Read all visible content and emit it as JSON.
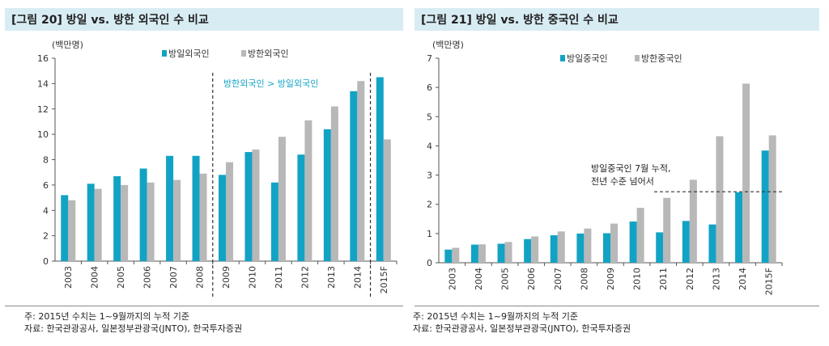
{
  "colors": {
    "teal": "#12a3c4",
    "gray": "#b8b8b8",
    "title_bg": "#d8ecf3",
    "axis": "#555555",
    "dash": "#333333"
  },
  "chart_data": [
    {
      "type": "bar",
      "title": "[그림 20] 방일 vs. 방한 외국인 수 비교",
      "unit_label": "(백만명)",
      "categories": [
        "2003",
        "2004",
        "2005",
        "2006",
        "2007",
        "2008",
        "2009",
        "2010",
        "2011",
        "2012",
        "2013",
        "2014",
        "2015F"
      ],
      "series": [
        {
          "name": "방일외국인",
          "color": "#12a3c4",
          "values": [
            5.2,
            6.1,
            6.7,
            7.3,
            8.3,
            8.3,
            6.8,
            8.6,
            6.2,
            8.4,
            10.4,
            13.4,
            14.5
          ]
        },
        {
          "name": "방한외국인",
          "color": "#b8b8b8",
          "values": [
            4.8,
            5.7,
            6.0,
            6.2,
            6.4,
            6.9,
            7.8,
            8.8,
            9.8,
            11.1,
            12.2,
            14.2,
            9.6
          ]
        }
      ],
      "ylim": [
        0,
        16
      ],
      "yticks": [
        0,
        2,
        4,
        6,
        8,
        10,
        12,
        14,
        16
      ],
      "xlabel": "",
      "ylabel": "",
      "annotation": "방한외국인 > 방일외국인",
      "divider_after": [
        "2008",
        "2014"
      ],
      "legend": "top"
    },
    {
      "type": "bar",
      "title": "[그림 21] 방일 vs. 방한 중국인 수 비교",
      "unit_label": "(백만명)",
      "categories": [
        "2003",
        "2004",
        "2005",
        "2006",
        "2007",
        "2008",
        "2009",
        "2010",
        "2011",
        "2012",
        "2013",
        "2014",
        "2015F"
      ],
      "series": [
        {
          "name": "방일중국인",
          "color": "#12a3c4",
          "values": [
            0.45,
            0.62,
            0.65,
            0.81,
            0.94,
            1.0,
            1.01,
            1.41,
            1.04,
            1.43,
            1.31,
            2.41,
            3.84
          ]
        },
        {
          "name": "방한중국인",
          "color": "#b8b8b8",
          "values": [
            0.51,
            0.63,
            0.71,
            0.9,
            1.07,
            1.17,
            1.34,
            1.88,
            2.22,
            2.84,
            4.33,
            6.13,
            4.36
          ]
        }
      ],
      "ylim": [
        0,
        7
      ],
      "yticks": [
        0,
        1,
        2,
        3,
        4,
        5,
        6,
        7
      ],
      "xlabel": "",
      "ylabel": "",
      "annotation": [
        "방일중국인 7월 누적,",
        "전년 수준 넘어서"
      ],
      "reference_value": 2.43,
      "legend": "top"
    }
  ],
  "notes": {
    "left": [
      "주: 2015년 수치는 1~9월까지의 누적 기준",
      "자료: 한국관광공사, 일본정부관광국(JNTO), 한국투자증권"
    ],
    "right": [
      "주: 2015년 수치는 1~9월까지의 누적 기준",
      "자료: 한국관광공사, 일본정부관광국(JNTO), 한국투자증권"
    ]
  }
}
